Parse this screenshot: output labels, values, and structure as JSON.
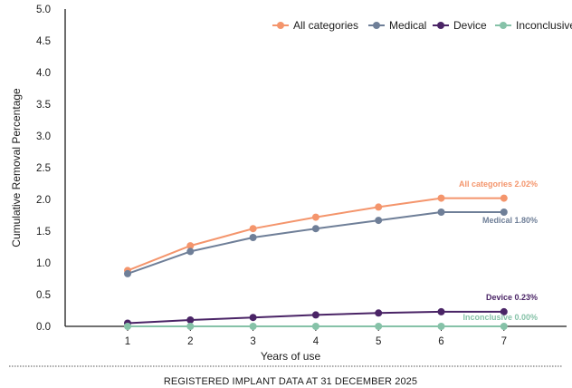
{
  "chart_data": {
    "type": "line",
    "xlabel": "Years of use",
    "ylabel": "Cumulative Removal Percentage",
    "x": [
      1,
      2,
      3,
      4,
      5,
      6,
      7
    ],
    "ylim": [
      0,
      5.0
    ],
    "yticks": [
      "0.0",
      "0.5",
      "1.0",
      "1.5",
      "2.0",
      "2.5",
      "3.0",
      "3.5",
      "4.0",
      "4.5",
      "5.0"
    ],
    "xticks": [
      "1",
      "2",
      "3",
      "4",
      "5",
      "6",
      "7"
    ],
    "grid": false,
    "legend_position": "top-right",
    "series": [
      {
        "name": "All categories",
        "color": "#f4956c",
        "values": [
          0.88,
          1.27,
          1.54,
          1.72,
          1.88,
          2.02,
          2.02
        ],
        "end_label": "All categories 2.02%"
      },
      {
        "name": "Medical",
        "color": "#6f7f98",
        "values": [
          0.83,
          1.18,
          1.4,
          1.54,
          1.67,
          1.8,
          1.8
        ],
        "end_label": "Medical 1.80%"
      },
      {
        "name": "Device",
        "color": "#4a2466",
        "values": [
          0.05,
          0.1,
          0.14,
          0.18,
          0.21,
          0.23,
          0.23
        ],
        "end_label": "Device 0.23%"
      },
      {
        "name": "Inconclusive",
        "color": "#86c2a8",
        "values": [
          0.0,
          0.0,
          0.0,
          0.0,
          0.0,
          0.0,
          0.0
        ],
        "end_label": "Inconclusive 0.00%"
      }
    ]
  },
  "footer": {
    "text": "REGISTERED IMPLANT DATA AT 31 DECEMBER 2025"
  }
}
